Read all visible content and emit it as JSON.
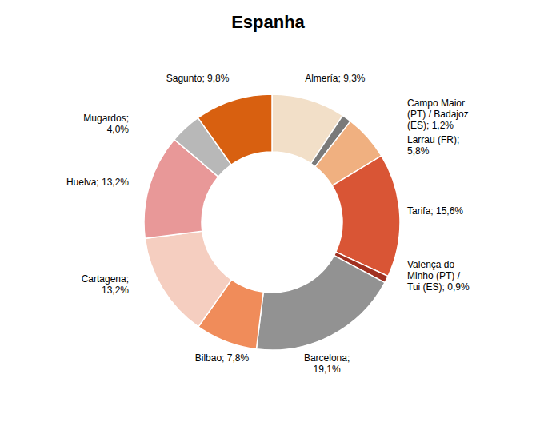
{
  "chart_data": {
    "type": "donut",
    "title": "Espanha",
    "categories": [
      "Almería; 9,3%",
      "Campo Maior\n(PT) / Badajoz\n(ES); 1,2%",
      "Larrau (FR);\n5,8%",
      "Tarifa; 15,6%",
      "Valença do\nMinho (PT) /\nTui (ES); 0,9%",
      "Barcelona;\n19,1%",
      "Bilbao; 7,8%",
      "Cartagena;\n13,2%",
      "Huelva; 13,2%",
      "Mugardos;\n4,0%",
      "Sagunto; 9,8%"
    ],
    "values": [
      9.3,
      1.2,
      5.8,
      15.6,
      0.9,
      19.1,
      7.8,
      13.2,
      13.2,
      4.0,
      9.8
    ],
    "colors": [
      "#f2dfc8",
      "#7a7a7a",
      "#f0b080",
      "#d95535",
      "#a03020",
      "#929292",
      "#f08c5a",
      "#f5cec0",
      "#e89898",
      "#b8b8b8",
      "#d86010"
    ]
  }
}
